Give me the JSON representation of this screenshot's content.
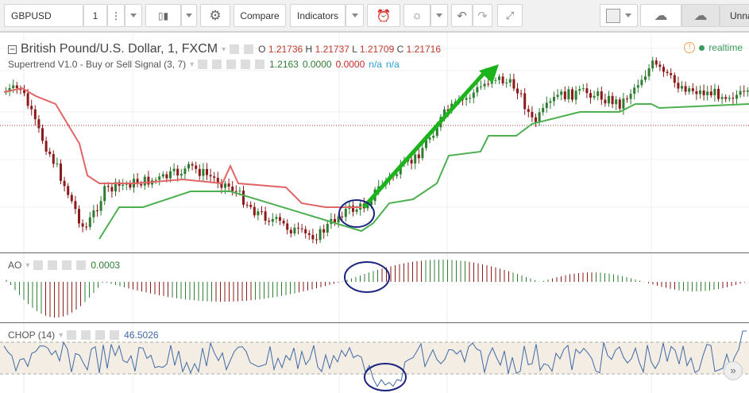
{
  "toolbar": {
    "symbol": "GBPUSD",
    "interval": "1",
    "compare": "Compare",
    "indicators": "Indicators",
    "layout_name": "Unna"
  },
  "main": {
    "title": "British Pound/U.S. Dollar, 1, FXCM",
    "ohlc": {
      "o_label": "O",
      "o": "1.21736",
      "h_label": "H",
      "h": "1.21737",
      "l_label": "L",
      "l": "1.21709",
      "c_label": "C",
      "c": "1.21716"
    },
    "status": "realtime"
  },
  "supertrend": {
    "title": "Supertrend V1.0 - Buy or Sell Signal (3, 7)",
    "v1": "1.2163",
    "v2": "0.0000",
    "v3": "0.0000",
    "v4": "n/a",
    "v5": "n/a"
  },
  "ao": {
    "title": "AO",
    "value": "0.0003"
  },
  "chop": {
    "title": "CHOP (14)",
    "value": "46.5026"
  },
  "colors": {
    "up": "#2e7d32",
    "down": "#8b1a1a",
    "supertrend_up": "#4caf50",
    "supertrend_down": "#e06666",
    "arrow": "#1db31d",
    "circle": "#1a237e",
    "chop_line": "#3f6aa8",
    "chop_band": "#f3ede3"
  }
}
